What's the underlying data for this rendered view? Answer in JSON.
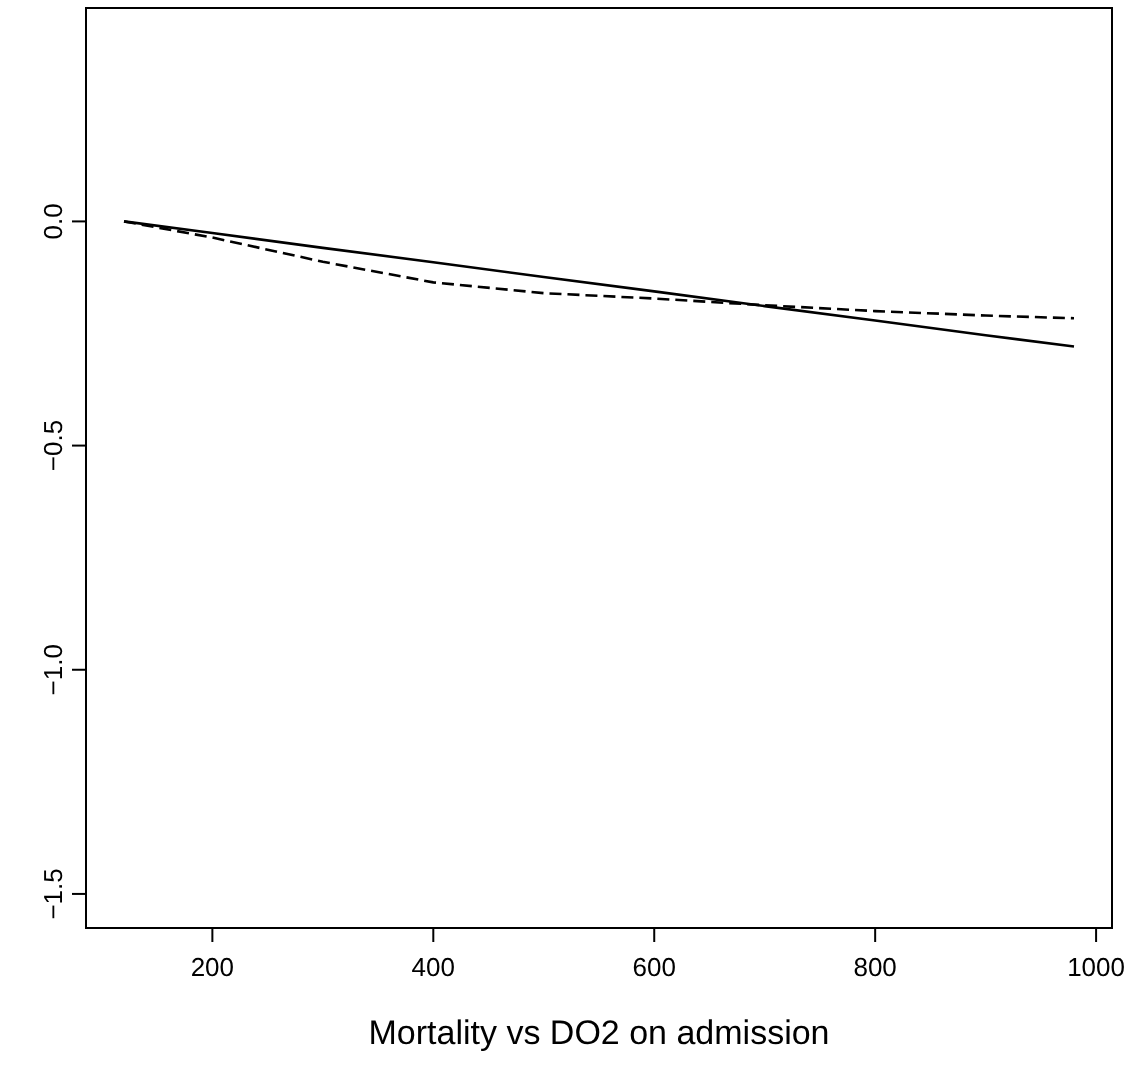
{
  "chart_data": {
    "type": "line",
    "xlabel": "Mortality vs DO2 on admission",
    "x": [
      120,
      200,
      300,
      400,
      500,
      600,
      700,
      800,
      900,
      980
    ],
    "series": [
      {
        "color": "#000000",
        "line_style": "solid",
        "values": [
          0,
          -0.026,
          -0.059,
          -0.091,
          -0.124,
          -0.156,
          -0.189,
          -0.221,
          -0.254,
          -0.279
        ]
      },
      {
        "color": "#000000",
        "line_style": "dashed",
        "values": [
          0,
          -0.036,
          -0.09,
          -0.136,
          -0.16,
          -0.172,
          -0.187,
          -0.2,
          -0.21,
          -0.216
        ]
      }
    ],
    "xlim": [
      85.6,
      1014.4
    ],
    "ylim": [
      -1.576,
      0.476
    ],
    "xticks": [
      200,
      400,
      600,
      800,
      1000
    ],
    "yticks": [
      {
        "value": 0,
        "label": "0.0"
      },
      {
        "value": -0.5,
        "label": "−0.5"
      },
      {
        "value": -1,
        "label": "−1.0"
      },
      {
        "value": -1.5,
        "label": "−1.5"
      }
    ],
    "grid": false,
    "marker": "none"
  }
}
